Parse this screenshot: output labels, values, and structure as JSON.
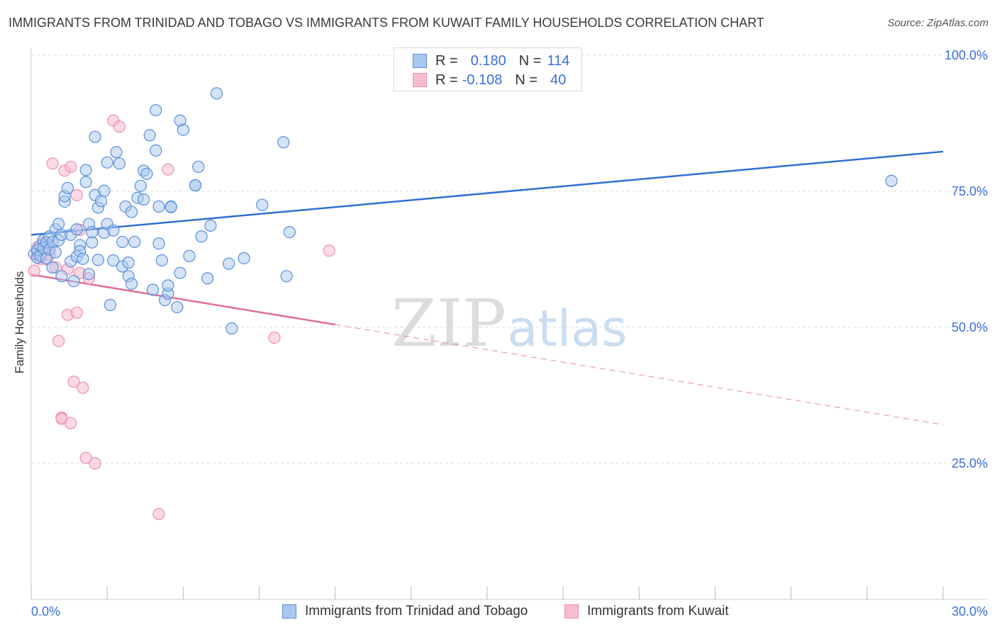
{
  "title": "IMMIGRANTS FROM TRINIDAD AND TOBAGO VS IMMIGRANTS FROM KUWAIT FAMILY HOUSEHOLDS CORRELATION CHART",
  "source": "Source: ZipAtlas.com",
  "watermark": {
    "zip": "ZIP",
    "atlas": "atlas"
  },
  "legend_top": {
    "r_label": "R =",
    "n_label": "N =",
    "series": [
      {
        "r": "0.180",
        "n": "114"
      },
      {
        "r": "-0.108",
        "n": "40"
      }
    ]
  },
  "legend_bottom": [
    "Immigrants from Trinidad and Tobago",
    "Immigrants from Kuwait"
  ],
  "colors": {
    "blue_fill": "#a9c7f0",
    "blue_stroke": "#5b8fd9",
    "blue_line": "#3170d0",
    "pink_fill": "#f7bcd0",
    "pink_stroke": "#ee8fb0",
    "pink_line": "#e06f98",
    "tick_label": "#3a6fd8",
    "grid": "#dddddd"
  },
  "chart_data": {
    "type": "scatter",
    "title": "IMMIGRANTS FROM TRINIDAD AND TOBAGO VS IMMIGRANTS FROM KUWAIT FAMILY HOUSEHOLDS CORRELATION CHART",
    "xlabel": "",
    "ylabel": "Family Households",
    "xlim": [
      0,
      30
    ],
    "ylim": [
      0,
      100
    ],
    "x_ticks": [
      0,
      30
    ],
    "x_tick_labels": [
      "0.0%",
      "30.0%"
    ],
    "y_ticks": [
      25,
      50,
      75,
      100
    ],
    "y_tick_labels": [
      "25.0%",
      "50.0%",
      "75.0%",
      "100.0%"
    ],
    "grid": true,
    "series": [
      {
        "name": "Immigrants from Trinidad and Tobago",
        "color": "blue",
        "r": 0.18,
        "n": 114,
        "trend": {
          "x": [
            0,
            30
          ],
          "y": [
            67.0,
            82.3
          ]
        },
        "points": [
          [
            0.1,
            63.5
          ],
          [
            0.2,
            62.8
          ],
          [
            0.2,
            64.2
          ],
          [
            0.3,
            65.0
          ],
          [
            0.3,
            63.2
          ],
          [
            0.4,
            66.0
          ],
          [
            0.4,
            64.6
          ],
          [
            0.5,
            62.7
          ],
          [
            0.5,
            65.6
          ],
          [
            0.6,
            64.3
          ],
          [
            0.6,
            66.7
          ],
          [
            0.7,
            65.7
          ],
          [
            0.7,
            61.0
          ],
          [
            0.8,
            68.0
          ],
          [
            0.8,
            63.8
          ],
          [
            0.9,
            69.0
          ],
          [
            0.9,
            66.0
          ],
          [
            1.0,
            67.0
          ],
          [
            1.0,
            59.4
          ],
          [
            1.1,
            73.1
          ],
          [
            1.1,
            74.1
          ],
          [
            1.2,
            75.6
          ],
          [
            1.3,
            62.1
          ],
          [
            1.3,
            67.0
          ],
          [
            1.4,
            58.5
          ],
          [
            1.5,
            63.0
          ],
          [
            1.5,
            68.0
          ],
          [
            1.6,
            65.1
          ],
          [
            1.6,
            64.0
          ],
          [
            1.7,
            62.6
          ],
          [
            1.8,
            78.9
          ],
          [
            1.8,
            76.7
          ],
          [
            1.9,
            59.8
          ],
          [
            1.9,
            69.0
          ],
          [
            2.0,
            65.6
          ],
          [
            2.0,
            67.5
          ],
          [
            2.1,
            85.0
          ],
          [
            2.1,
            74.3
          ],
          [
            2.2,
            72.0
          ],
          [
            2.2,
            62.4
          ],
          [
            2.3,
            73.2
          ],
          [
            2.4,
            67.4
          ],
          [
            2.4,
            75.1
          ],
          [
            2.5,
            80.3
          ],
          [
            2.5,
            69.0
          ],
          [
            2.6,
            54.1
          ],
          [
            2.7,
            67.8
          ],
          [
            2.7,
            62.3
          ],
          [
            2.8,
            82.2
          ],
          [
            2.9,
            80.1
          ],
          [
            3.0,
            65.7
          ],
          [
            3.0,
            61.2
          ],
          [
            3.1,
            72.2
          ],
          [
            3.2,
            61.9
          ],
          [
            3.2,
            59.4
          ],
          [
            3.3,
            58.0
          ],
          [
            3.3,
            71.2
          ],
          [
            3.4,
            65.7
          ],
          [
            3.5,
            73.8
          ],
          [
            3.6,
            76.0
          ],
          [
            3.7,
            78.8
          ],
          [
            3.7,
            73.5
          ],
          [
            3.8,
            78.2
          ],
          [
            3.9,
            85.3
          ],
          [
            4.0,
            56.9
          ],
          [
            4.1,
            82.5
          ],
          [
            4.1,
            89.9
          ],
          [
            4.2,
            72.2
          ],
          [
            4.2,
            65.4
          ],
          [
            4.3,
            62.3
          ],
          [
            4.4,
            55.0
          ],
          [
            4.5,
            56.2
          ],
          [
            4.5,
            57.7
          ],
          [
            4.6,
            72.2
          ],
          [
            4.6,
            72.1
          ],
          [
            4.8,
            53.7
          ],
          [
            4.9,
            60.0
          ],
          [
            4.9,
            88.0
          ],
          [
            5.0,
            86.3
          ],
          [
            5.2,
            63.1
          ],
          [
            5.4,
            76.1
          ],
          [
            5.4,
            76.1
          ],
          [
            5.5,
            79.5
          ],
          [
            5.6,
            66.7
          ],
          [
            5.8,
            59.0
          ],
          [
            5.9,
            68.7
          ],
          [
            6.1,
            93.0
          ],
          [
            6.5,
            61.7
          ],
          [
            6.6,
            49.8
          ],
          [
            7.0,
            62.7
          ],
          [
            7.6,
            72.5
          ],
          [
            8.3,
            84.0
          ],
          [
            8.4,
            59.4
          ],
          [
            8.5,
            67.5
          ],
          [
            28.3,
            76.9
          ]
        ]
      },
      {
        "name": "Immigrants from Kuwait",
        "color": "pink",
        "r": -0.108,
        "n": 40,
        "trend_solid": {
          "x": [
            0,
            10.0
          ],
          "y": [
            59.7,
            50.5
          ]
        },
        "trend_dashed": {
          "x": [
            10.0,
            30
          ],
          "y": [
            50.5,
            32.1
          ]
        },
        "points": [
          [
            0.1,
            60.4
          ],
          [
            0.2,
            63.4
          ],
          [
            0.2,
            64.7
          ],
          [
            0.3,
            62.6
          ],
          [
            0.4,
            65.6
          ],
          [
            0.4,
            63.9
          ],
          [
            0.5,
            62.5
          ],
          [
            0.6,
            64.3
          ],
          [
            0.6,
            63.3
          ],
          [
            0.7,
            80.1
          ],
          [
            0.8,
            61.0
          ],
          [
            0.9,
            47.5
          ],
          [
            1.0,
            33.4
          ],
          [
            1.0,
            33.2
          ],
          [
            1.1,
            78.8
          ],
          [
            1.2,
            52.3
          ],
          [
            1.2,
            60.7
          ],
          [
            1.3,
            79.5
          ],
          [
            1.3,
            32.4
          ],
          [
            1.4,
            40.0
          ],
          [
            1.5,
            74.3
          ],
          [
            1.5,
            52.7
          ],
          [
            1.6,
            67.9
          ],
          [
            1.6,
            60.0
          ],
          [
            1.7,
            38.9
          ],
          [
            1.8,
            26.0
          ],
          [
            1.9,
            59.0
          ],
          [
            2.1,
            25.0
          ],
          [
            2.7,
            88.0
          ],
          [
            2.9,
            86.9
          ],
          [
            4.5,
            79.0
          ],
          [
            4.2,
            15.7
          ],
          [
            8.0,
            48.1
          ],
          [
            9.8,
            64.1
          ]
        ]
      }
    ]
  }
}
